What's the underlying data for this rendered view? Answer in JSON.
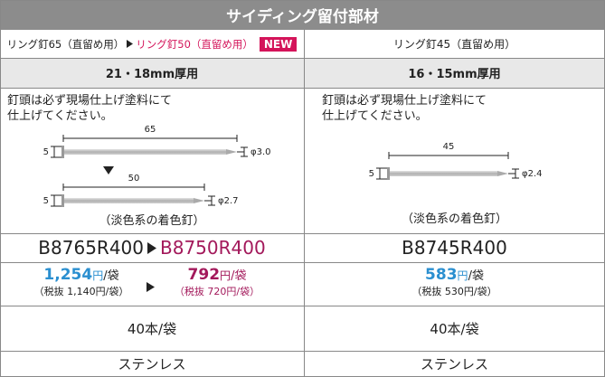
{
  "header": {
    "title": "サイディング留付部材"
  },
  "columns": [
    {
      "products": [
        {
          "name": "リング釘65（直留め用）"
        },
        {
          "name": "リング釘50（直留め用）",
          "badge": "NEW"
        }
      ],
      "thickness": "21・18mm厚用",
      "note": [
        "釘頭は必ず現場仕上げ塗料にて",
        "仕上げてください。"
      ],
      "nails": [
        {
          "length": "65",
          "head": "5",
          "diameter": "φ3.0"
        },
        {
          "length": "50",
          "head": "5",
          "diameter": "φ2.7"
        }
      ],
      "color_note": "（淡色系の着色釘）",
      "codes": [
        "B8765R400",
        "B8750R400"
      ],
      "prices": [
        {
          "amount": "1,254",
          "currency": "円",
          "per": "/袋",
          "tax_excluded": "（税抜 1,140円/袋）"
        },
        {
          "amount": "792",
          "currency": "円",
          "per": "/袋",
          "tax_excluded": "（税抜 720円/袋）"
        }
      ],
      "quantity": "40本/袋",
      "material": "ステンレス"
    },
    {
      "products": [
        {
          "name": "リング釘45（直留め用）"
        }
      ],
      "thickness": "16・15mm厚用",
      "note": [
        "釘頭は必ず現場仕上げ塗料にて",
        "仕上げてください。"
      ],
      "nails": [
        {
          "length": "45",
          "head": "5",
          "diameter": "φ2.4"
        }
      ],
      "color_note": "（淡色系の着色釘）",
      "codes": [
        "B8745R400"
      ],
      "prices": [
        {
          "amount": "583",
          "currency": "円",
          "per": "/袋",
          "tax_excluded": "（税抜 530円/袋）"
        }
      ],
      "quantity": "40本/袋",
      "material": "ステンレス"
    }
  ]
}
